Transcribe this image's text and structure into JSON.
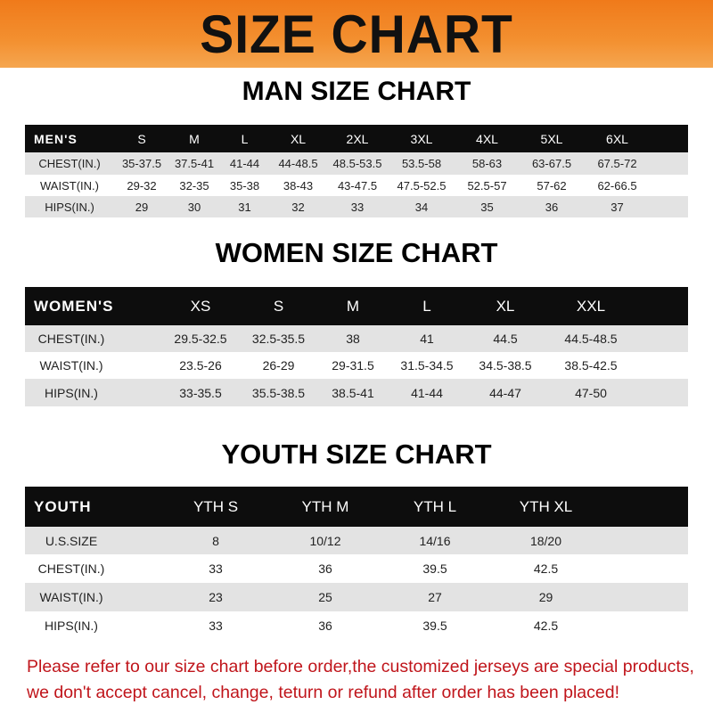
{
  "banner_title": "SIZE CHART",
  "men": {
    "title": "MAN SIZE CHART",
    "header_label": "MEN'S",
    "sizes": [
      "S",
      "M",
      "L",
      "XL",
      "2XL",
      "3XL",
      "4XL",
      "5XL",
      "6XL"
    ],
    "rows": [
      {
        "label": "CHEST(IN.)",
        "values": [
          "35-37.5",
          "37.5-41",
          "41-44",
          "44-48.5",
          "48.5-53.5",
          "53.5-58",
          "58-63",
          "63-67.5",
          "67.5-72"
        ]
      },
      {
        "label": "WAIST(IN.)",
        "values": [
          "29-32",
          "32-35",
          "35-38",
          "38-43",
          "43-47.5",
          "47.5-52.5",
          "52.5-57",
          "57-62",
          "62-66.5"
        ]
      },
      {
        "label": "HIPS(IN.)",
        "values": [
          "29",
          "30",
          "31",
          "32",
          "33",
          "34",
          "35",
          "36",
          "37"
        ]
      }
    ]
  },
  "women": {
    "title": "WOMEN SIZE CHART",
    "header_label": "WOMEN'S",
    "sizes": [
      "XS",
      "S",
      "M",
      "L",
      "XL",
      "XXL"
    ],
    "rows": [
      {
        "label": "CHEST(IN.)",
        "values": [
          "29.5-32.5",
          "32.5-35.5",
          "38",
          "41",
          "44.5",
          "44.5-48.5"
        ]
      },
      {
        "label": "WAIST(IN.)",
        "values": [
          "23.5-26",
          "26-29",
          "29-31.5",
          "31.5-34.5",
          "34.5-38.5",
          "38.5-42.5"
        ]
      },
      {
        "label": "HIPS(IN.)",
        "values": [
          "33-35.5",
          "35.5-38.5",
          "38.5-41",
          "41-44",
          "44-47",
          "47-50"
        ]
      }
    ]
  },
  "youth": {
    "title": "YOUTH SIZE CHART",
    "header_label": "YOUTH",
    "sizes": [
      "YTH S",
      "YTH M",
      "YTH L",
      "YTH XL"
    ],
    "rows": [
      {
        "label": "U.S.SIZE",
        "values": [
          "8",
          "10/12",
          "14/16",
          "18/20"
        ]
      },
      {
        "label": "CHEST(IN.)",
        "values": [
          "33",
          "36",
          "39.5",
          "42.5"
        ]
      },
      {
        "label": "WAIST(IN.)",
        "values": [
          "23",
          "25",
          "27",
          "29"
        ]
      },
      {
        "label": "HIPS(IN.)",
        "values": [
          "33",
          "36",
          "39.5",
          "42.5"
        ]
      }
    ]
  },
  "note": "Please refer to our size chart before order,the customized jerseys are special products, we don't accept cancel, change, teturn or refund after order has been placed!",
  "colors": {
    "banner": "#f39030",
    "header_row": "#0d0d0d",
    "shaded_row": "#e3e3e3",
    "note": "#c0151b"
  }
}
